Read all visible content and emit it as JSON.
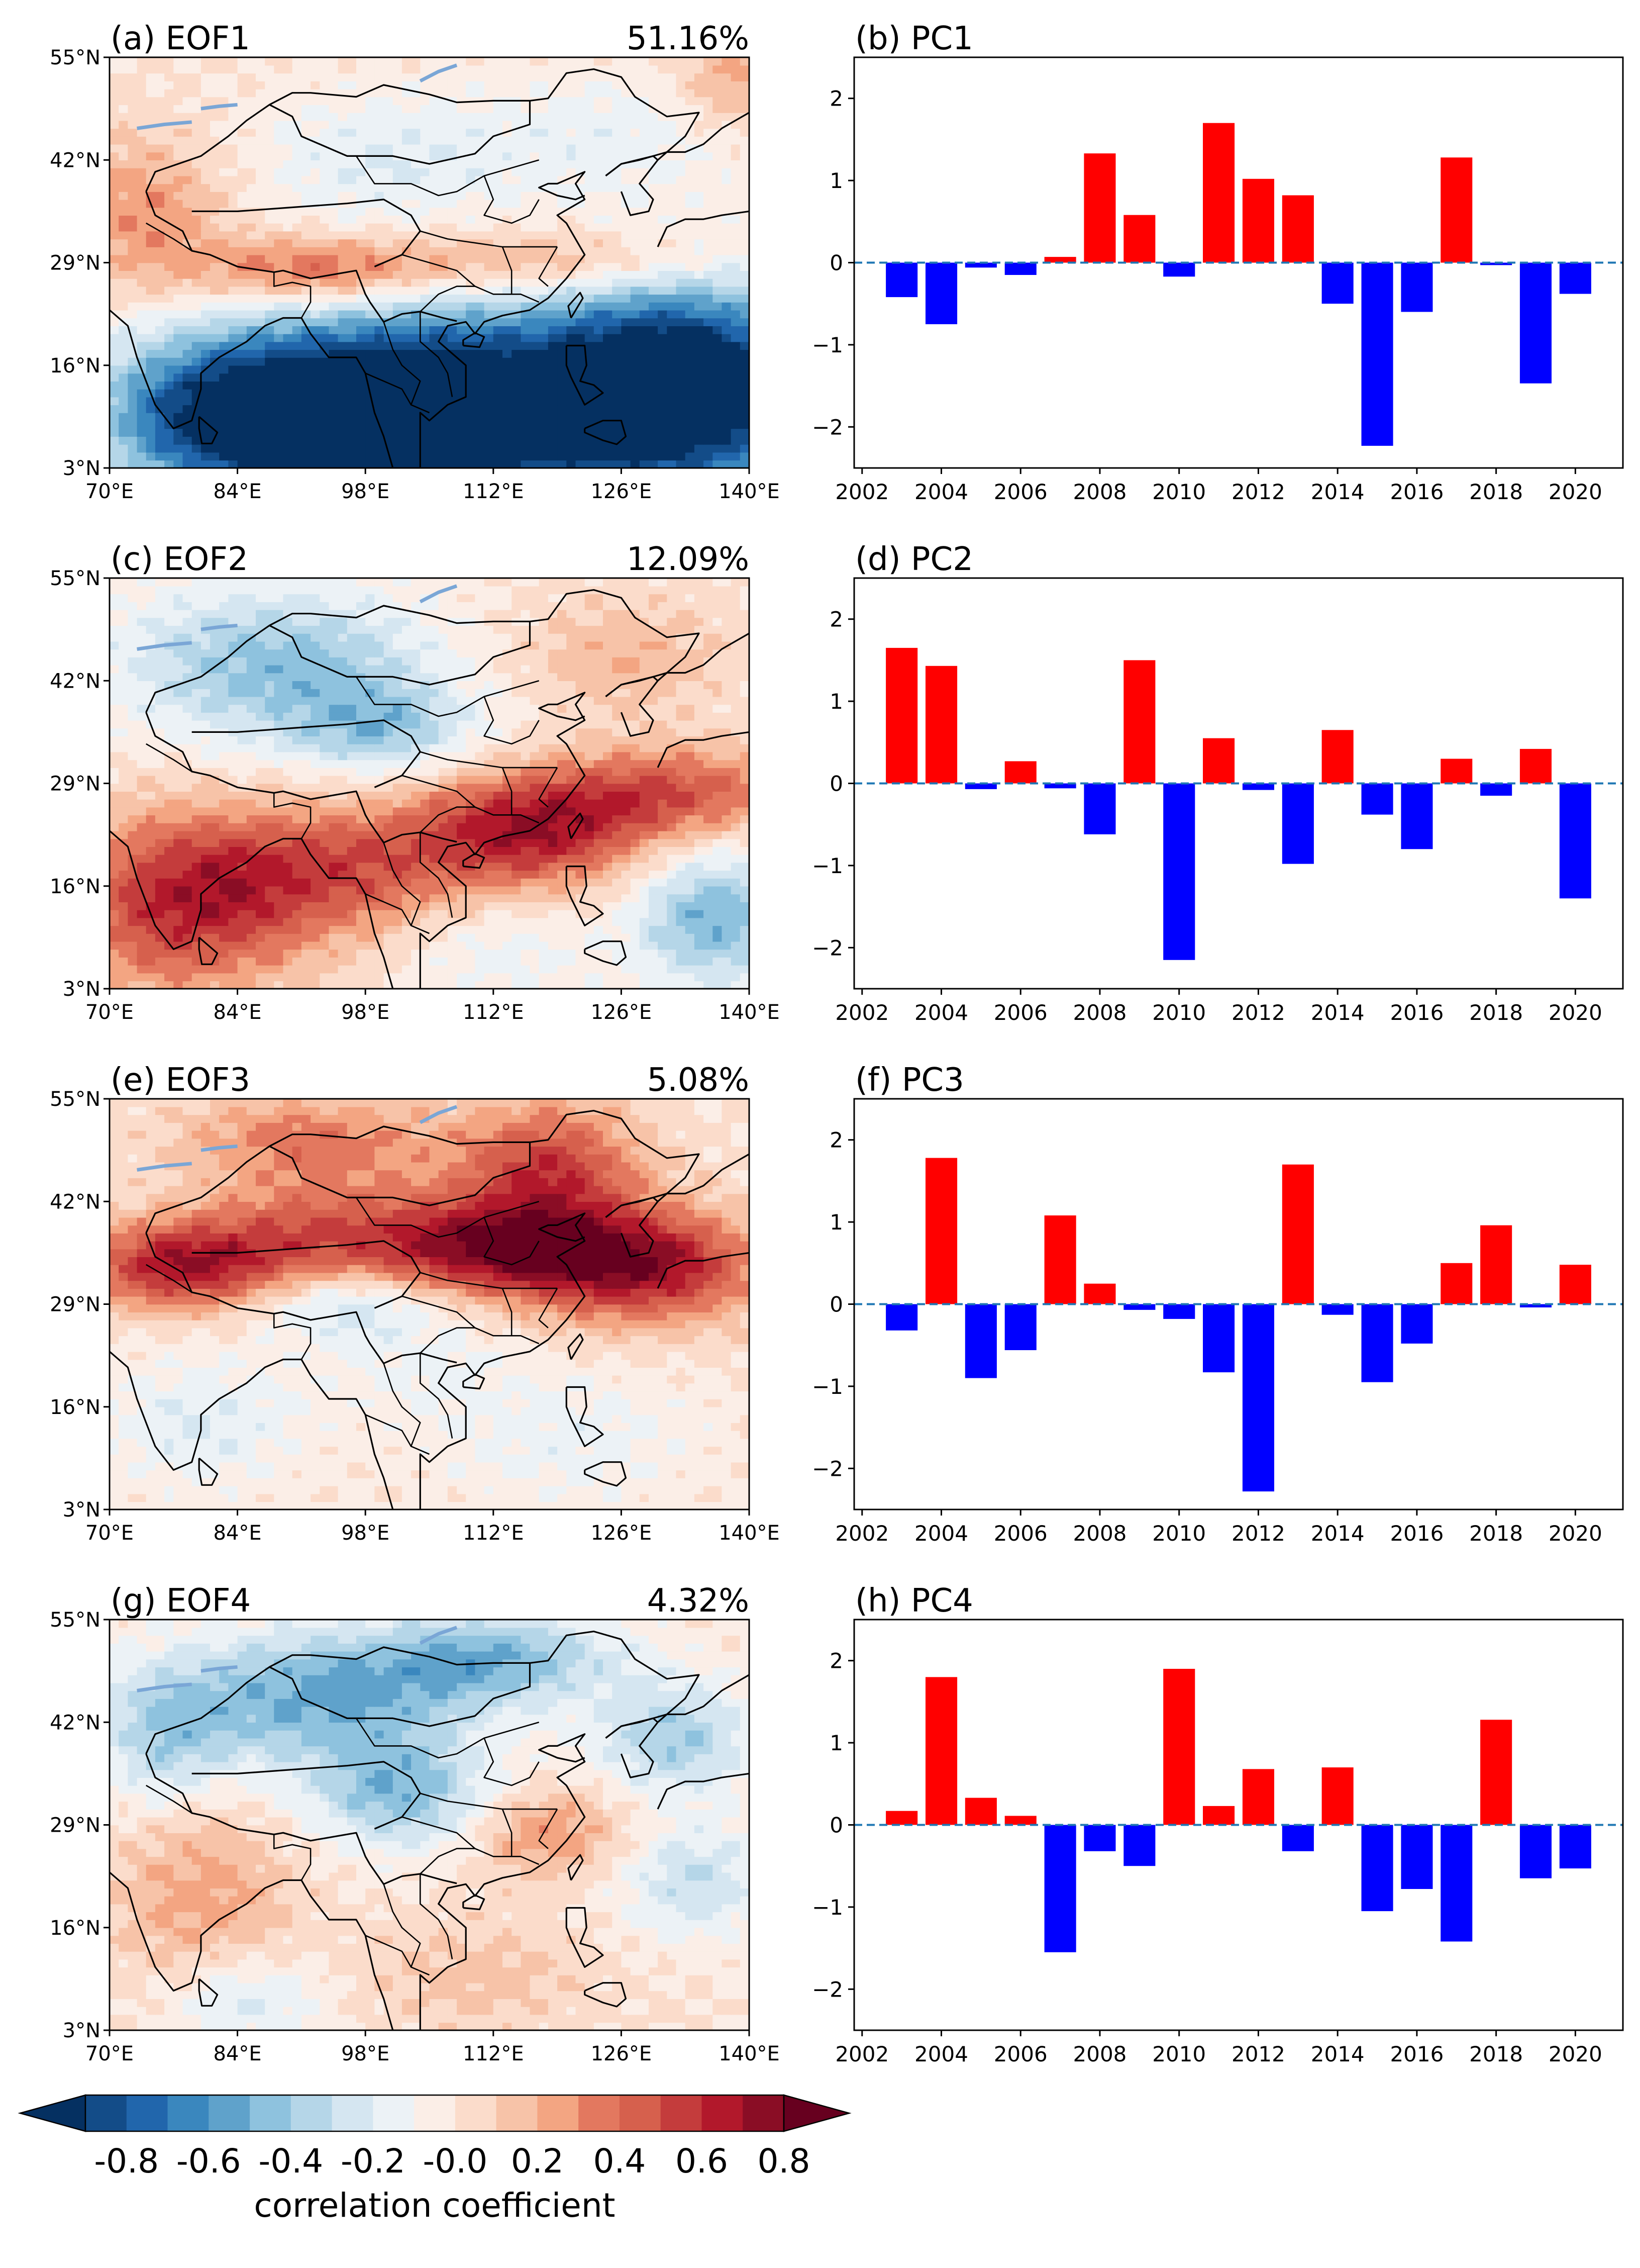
{
  "chart_data": [
    {
      "type": "heatmap",
      "id": "eof1",
      "title": "(a) EOF1",
      "variance_label": "51.16%",
      "lon_ticks": [
        "70°E",
        "84°E",
        "98°E",
        "112°E",
        "126°E",
        "140°E"
      ],
      "lat_ticks": [
        "55°N",
        "42°N",
        "29°N",
        "16°N",
        "3°N"
      ],
      "lon_range": [
        70,
        140
      ],
      "lat_range": [
        3,
        55
      ],
      "pattern": "Negative correlation over the South China Sea, Indochina and tropical western Pacific south of ~25°N; positive band along ~25-30°N from the Bay of Bengal through southern China; weak mixed values over Mongolia and northern China.",
      "features": [
        {
          "lon": 112,
          "lat": 11,
          "value": -0.85,
          "sx": 22,
          "sy": 9
        },
        {
          "lon": 95,
          "lat": 9,
          "value": -0.75,
          "sx": 14,
          "sy": 8
        },
        {
          "lon": 133,
          "lat": 14,
          "value": -0.8,
          "sx": 10,
          "sy": 9
        },
        {
          "lon": 80,
          "lat": 10,
          "value": -0.35,
          "sx": 7,
          "sy": 6
        },
        {
          "lon": 92,
          "lat": 28,
          "value": 0.45,
          "sx": 9,
          "sy": 3
        },
        {
          "lon": 118,
          "lat": 29,
          "value": 0.3,
          "sx": 14,
          "sy": 3
        },
        {
          "lon": 74,
          "lat": 35,
          "value": 0.3,
          "sx": 6,
          "sy": 7
        },
        {
          "lon": 100,
          "lat": 42,
          "value": -0.2,
          "sx": 10,
          "sy": 6
        },
        {
          "lon": 125,
          "lat": 45,
          "value": -0.15,
          "sx": 10,
          "sy": 6
        },
        {
          "lon": 138,
          "lat": 52,
          "value": 0.25,
          "sx": 4,
          "sy": 4
        }
      ]
    },
    {
      "type": "bar",
      "id": "pc1",
      "title": "(b) PC1",
      "x": [
        2003,
        2004,
        2005,
        2006,
        2007,
        2008,
        2009,
        2010,
        2011,
        2012,
        2013,
        2014,
        2015,
        2016,
        2017,
        2018,
        2019,
        2020
      ],
      "values": [
        -0.42,
        -0.75,
        -0.06,
        -0.15,
        0.07,
        1.33,
        0.58,
        -0.17,
        1.7,
        1.02,
        0.82,
        -0.5,
        -2.23,
        -0.6,
        1.28,
        -0.03,
        -1.47,
        -0.38
      ],
      "xticks": [
        2002,
        2004,
        2006,
        2008,
        2010,
        2012,
        2014,
        2016,
        2018,
        2020
      ],
      "yticks": [
        -2,
        -1,
        0,
        1,
        2
      ],
      "ylim": [
        -2.5,
        2.5
      ],
      "xlim": [
        2001.8,
        2021.2
      ],
      "positive_color": "#ff0000",
      "negative_color": "#0000ff"
    },
    {
      "type": "heatmap",
      "id": "eof2",
      "title": "(c) EOF2",
      "variance_label": "12.09%",
      "lon_ticks": [
        "70°E",
        "84°E",
        "98°E",
        "112°E",
        "126°E",
        "140°E"
      ],
      "lat_ticks": [
        "55°N",
        "42°N",
        "29°N",
        "16°N",
        "3°N"
      ],
      "lon_range": [
        70,
        140
      ],
      "lat_range": [
        3,
        55
      ],
      "pattern": "Positive correlation over India, southern China and the subtropical northwest Pacific along ~20-30°N; negative over the Tibetan Plateau, Mongolia and the tropical western Pacific.",
      "features": [
        {
          "lon": 78,
          "lat": 14,
          "value": 0.6,
          "sx": 9,
          "sy": 8
        },
        {
          "lon": 95,
          "lat": 18,
          "value": 0.45,
          "sx": 10,
          "sy": 6
        },
        {
          "lon": 116,
          "lat": 23,
          "value": 0.65,
          "sx": 9,
          "sy": 5
        },
        {
          "lon": 132,
          "lat": 28,
          "value": 0.45,
          "sx": 10,
          "sy": 4
        },
        {
          "lon": 88,
          "lat": 44,
          "value": -0.45,
          "sx": 12,
          "sy": 7
        },
        {
          "lon": 100,
          "lat": 36,
          "value": -0.35,
          "sx": 7,
          "sy": 4
        },
        {
          "lon": 136,
          "lat": 12,
          "value": -0.5,
          "sx": 6,
          "sy": 6
        },
        {
          "lon": 126,
          "lat": 45,
          "value": 0.2,
          "sx": 8,
          "sy": 5
        },
        {
          "lon": 112,
          "lat": 8,
          "value": -0.15,
          "sx": 8,
          "sy": 5
        }
      ]
    },
    {
      "type": "bar",
      "id": "pc2",
      "title": "(d) PC2",
      "x": [
        2003,
        2004,
        2005,
        2006,
        2007,
        2008,
        2009,
        2010,
        2011,
        2012,
        2013,
        2014,
        2015,
        2016,
        2017,
        2018,
        2019,
        2020
      ],
      "values": [
        1.65,
        1.43,
        -0.07,
        0.27,
        -0.06,
        -0.62,
        1.5,
        -2.15,
        0.55,
        -0.08,
        -0.98,
        0.65,
        -0.38,
        -0.8,
        0.3,
        -0.15,
        0.42,
        -1.4
      ],
      "xticks": [
        2002,
        2004,
        2006,
        2008,
        2010,
        2012,
        2014,
        2016,
        2018,
        2020
      ],
      "yticks": [
        -2,
        -1,
        0,
        1,
        2
      ],
      "ylim": [
        -2.5,
        2.5
      ],
      "xlim": [
        2001.8,
        2021.2
      ],
      "positive_color": "#ff0000",
      "negative_color": "#0000ff"
    },
    {
      "type": "heatmap",
      "id": "eof3",
      "title": "(e) EOF3",
      "variance_label": "5.08%",
      "lon_ticks": [
        "70°E",
        "84°E",
        "98°E",
        "112°E",
        "126°E",
        "140°E"
      ],
      "lat_ticks": [
        "55°N",
        "42°N",
        "29°N",
        "16°N",
        "3°N"
      ],
      "lon_range": [
        70,
        140
      ],
      "lat_range": [
        3,
        55
      ],
      "pattern": "Strong positive band along ~30-40°N from central Asia through northern China to Japan; weak negative values over the Tibetan Plateau, southern China and the tropics.",
      "features": [
        {
          "lon": 78,
          "lat": 34,
          "value": 0.65,
          "sx": 8,
          "sy": 4
        },
        {
          "lon": 95,
          "lat": 38,
          "value": 0.45,
          "sx": 10,
          "sy": 5
        },
        {
          "lon": 112,
          "lat": 36,
          "value": 0.6,
          "sx": 8,
          "sy": 4
        },
        {
          "lon": 128,
          "lat": 34,
          "value": 0.75,
          "sx": 9,
          "sy": 5
        },
        {
          "lon": 118,
          "lat": 46,
          "value": 0.55,
          "sx": 7,
          "sy": 6
        },
        {
          "lon": 92,
          "lat": 50,
          "value": 0.35,
          "sx": 10,
          "sy": 4
        },
        {
          "lon": 95,
          "lat": 29,
          "value": -0.3,
          "sx": 7,
          "sy": 3
        },
        {
          "lon": 80,
          "lat": 14,
          "value": -0.2,
          "sx": 8,
          "sy": 6
        },
        {
          "lon": 120,
          "lat": 12,
          "value": -0.15,
          "sx": 10,
          "sy": 6
        },
        {
          "lon": 104,
          "lat": 22,
          "value": -0.12,
          "sx": 8,
          "sy": 5
        }
      ]
    },
    {
      "type": "bar",
      "id": "pc3",
      "title": "(f) PC3",
      "x": [
        2003,
        2004,
        2005,
        2006,
        2007,
        2008,
        2009,
        2010,
        2011,
        2012,
        2013,
        2014,
        2015,
        2016,
        2017,
        2018,
        2019,
        2020
      ],
      "values": [
        -0.32,
        1.78,
        -0.9,
        -0.56,
        1.08,
        0.25,
        -0.07,
        -0.18,
        -0.83,
        -2.28,
        1.7,
        -0.13,
        -0.95,
        -0.48,
        0.5,
        0.96,
        -0.04,
        0.48
      ],
      "xticks": [
        2002,
        2004,
        2006,
        2008,
        2010,
        2012,
        2014,
        2016,
        2018,
        2020
      ],
      "yticks": [
        -2,
        -1,
        0,
        1,
        2
      ],
      "ylim": [
        -2.5,
        2.5
      ],
      "xlim": [
        2001.8,
        2021.2
      ],
      "positive_color": "#ff0000",
      "negative_color": "#0000ff"
    },
    {
      "type": "heatmap",
      "id": "eof4",
      "title": "(g) EOF4",
      "variance_label": "4.32%",
      "lon_ticks": [
        "70°E",
        "84°E",
        "98°E",
        "112°E",
        "126°E",
        "140°E"
      ],
      "lat_ticks": [
        "55°N",
        "42°N",
        "29°N",
        "16°N",
        "3°N"
      ],
      "lon_range": [
        70,
        140
      ],
      "lat_range": [
        3,
        55
      ],
      "pattern": "Negative correlation over northwest China, Mongolia and northern China; weak positive patches over India, southeastern China and the western Pacific.",
      "features": [
        {
          "lon": 92,
          "lat": 45,
          "value": -0.5,
          "sx": 12,
          "sy": 6
        },
        {
          "lon": 112,
          "lat": 50,
          "value": -0.45,
          "sx": 10,
          "sy": 4
        },
        {
          "lon": 102,
          "lat": 33,
          "value": -0.45,
          "sx": 7,
          "sy": 5
        },
        {
          "lon": 132,
          "lat": 40,
          "value": -0.4,
          "sx": 6,
          "sy": 5
        },
        {
          "lon": 76,
          "lat": 40,
          "value": -0.3,
          "sx": 5,
          "sy": 6
        },
        {
          "lon": 80,
          "lat": 20,
          "value": 0.25,
          "sx": 7,
          "sy": 8
        },
        {
          "lon": 118,
          "lat": 28,
          "value": 0.3,
          "sx": 6,
          "sy": 4
        },
        {
          "lon": 134,
          "lat": 22,
          "value": -0.3,
          "sx": 6,
          "sy": 5
        },
        {
          "lon": 110,
          "lat": 10,
          "value": 0.15,
          "sx": 9,
          "sy": 5
        },
        {
          "lon": 85,
          "lat": 7,
          "value": -0.25,
          "sx": 6,
          "sy": 4
        }
      ]
    },
    {
      "type": "bar",
      "id": "pc4",
      "title": "(h) PC4",
      "x": [
        2003,
        2004,
        2005,
        2006,
        2007,
        2008,
        2009,
        2010,
        2011,
        2012,
        2013,
        2014,
        2015,
        2016,
        2017,
        2018,
        2019,
        2020
      ],
      "values": [
        0.17,
        1.8,
        0.33,
        0.11,
        -1.55,
        -0.32,
        -0.5,
        1.9,
        0.23,
        0.68,
        -0.32,
        0.7,
        -1.05,
        -0.78,
        -1.42,
        1.28,
        -0.65,
        -0.53
      ],
      "xticks": [
        2002,
        2004,
        2006,
        2008,
        2010,
        2012,
        2014,
        2016,
        2018,
        2020
      ],
      "yticks": [
        -2,
        -1,
        0,
        1,
        2
      ],
      "ylim": [
        -2.5,
        2.5
      ],
      "xlim": [
        2001.8,
        2021.2
      ],
      "positive_color": "#ff0000",
      "negative_color": "#0000ff"
    }
  ],
  "colorbar": {
    "label": "correlation coefficient",
    "tick_labels": [
      "-0.8",
      "-0.6",
      "-0.4",
      "-0.2",
      "-0.0",
      "0.2",
      "0.4",
      "0.6",
      "0.8"
    ],
    "levels": [
      -0.9,
      -0.8,
      -0.7,
      -0.6,
      -0.5,
      -0.4,
      -0.3,
      -0.2,
      -0.1,
      0.0,
      0.1,
      0.2,
      0.3,
      0.4,
      0.5,
      0.6,
      0.7,
      0.8,
      0.9
    ],
    "colors": [
      "#053061",
      "#134c88",
      "#2166ac",
      "#3a87be",
      "#5fa2cb",
      "#8ec2de",
      "#b5d6e8",
      "#d5e6f1",
      "#ecf2f6",
      "#fbeee7",
      "#fbdccb",
      "#f7c3a8",
      "#f3a582",
      "#e3785f",
      "#d6604d",
      "#c43c3c",
      "#b2182b",
      "#8a0d25",
      "#67001f"
    ]
  }
}
